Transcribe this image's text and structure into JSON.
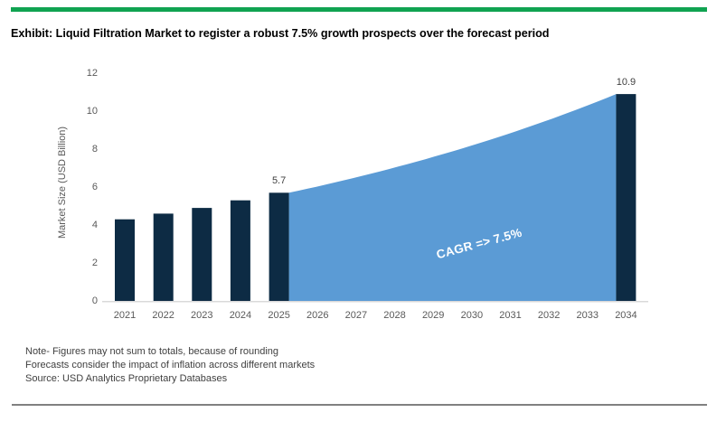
{
  "header": {
    "title": "Exhibit: Liquid Filtration Market to register a robust 7.5% growth prospects over the forecast period"
  },
  "chart_data": {
    "type": "bar",
    "ylabel": "Market Size (USD Billion)",
    "ylim": [
      0,
      12
    ],
    "yticks": [
      0,
      2,
      4,
      6,
      8,
      10,
      12
    ],
    "categories": [
      "2021",
      "2022",
      "2023",
      "2024",
      "2025",
      "2026",
      "2027",
      "2028",
      "2029",
      "2030",
      "2031",
      "2032",
      "2033",
      "2034"
    ],
    "series": [
      {
        "name": "market-size-bars",
        "type": "bar",
        "values": [
          4.3,
          4.6,
          4.9,
          5.3,
          5.7,
          null,
          null,
          null,
          null,
          null,
          null,
          null,
          null,
          10.9
        ]
      },
      {
        "name": "forecast-area",
        "type": "area",
        "start_category": "2025",
        "end_category": "2034",
        "start_value": 5.7,
        "end_value": 10.9
      }
    ],
    "data_labels": [
      {
        "category": "2025",
        "text": "5.7",
        "value": 5.7
      },
      {
        "category": "2034",
        "text": "10.9",
        "value": 10.9
      }
    ],
    "annotation": "CAGR => 7.5%",
    "cagr_pct": 7.5,
    "grid": "off",
    "legend": "none",
    "colors": {
      "bar": "#0d2b44",
      "area": "#5b9bd5",
      "axis_line": "#d9d9d9",
      "tick_text": "#595959",
      "label_text": "#404040",
      "annotation_text": "#ffffff"
    }
  },
  "footnotes": {
    "line1": "Note- Figures may not sum to totals, because of rounding",
    "line2": "Forecasts consider the impact of inflation across different markets",
    "line3": "Source: USD Analytics Proprietary Databases"
  },
  "page": {
    "accent_color": "#10a351",
    "divider_color": "#808080"
  }
}
